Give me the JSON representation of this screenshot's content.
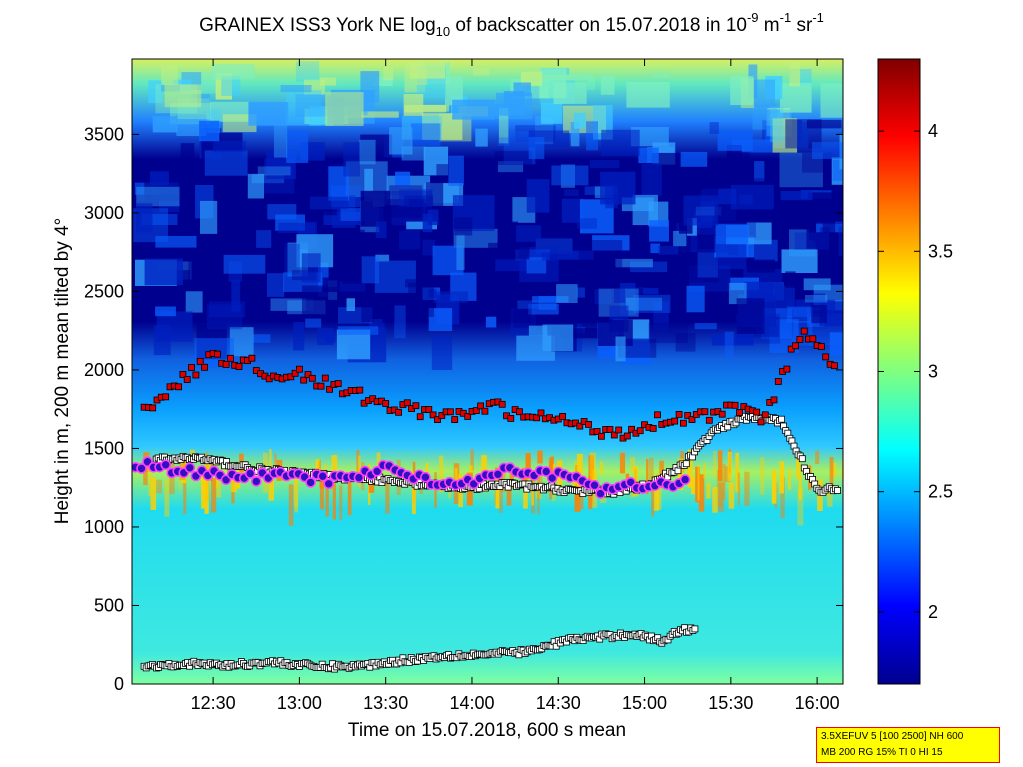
{
  "chart_data": {
    "type": "heatmap",
    "title_parts": {
      "prefix": "GRAINEX ISS3 York NE log",
      "sub": "10",
      "middle": " of backscatter on 15.07.2018 in 10",
      "sup1": "-9",
      "unit1": " m",
      "sup2": "-1",
      "unit2": " sr",
      "sup3": "-1"
    },
    "xlabel": "Time on 15.07.2018, 600 s mean",
    "ylabel": "Height in m, 200 m mean tilted by 4°",
    "x_range_hours": [
      12.03,
      16.15
    ],
    "ylim": [
      0,
      3980
    ],
    "x_ticks": [
      {
        "label": "12:30",
        "value": 12.5
      },
      {
        "label": "13:00",
        "value": 13.0
      },
      {
        "label": "13:30",
        "value": 13.5
      },
      {
        "label": "14:00",
        "value": 14.0
      },
      {
        "label": "14:30",
        "value": 14.5
      },
      {
        "label": "15:00",
        "value": 15.0
      },
      {
        "label": "15:30",
        "value": 15.5
      },
      {
        "label": "16:00",
        "value": 16.0
      }
    ],
    "y_ticks": [
      0,
      500,
      1000,
      1500,
      2000,
      2500,
      3000,
      3500
    ],
    "colorbar": {
      "colormap": "jet",
      "range": [
        1.7,
        4.3
      ],
      "ticks": [
        2,
        2.5,
        3,
        3.5,
        4
      ]
    },
    "series": [
      {
        "marker": "white-square",
        "x": [
          12.17,
          12.4,
          12.6,
          12.8,
          13.0,
          13.2,
          13.4,
          13.6,
          13.8,
          14.0,
          14.2,
          14.4,
          14.6,
          14.8,
          15.0,
          15.2,
          15.4,
          15.6,
          15.8,
          16.0,
          16.12
        ],
        "y": [
          1430,
          1440,
          1400,
          1360,
          1340,
          1320,
          1310,
          1280,
          1260,
          1250,
          1270,
          1250,
          1230,
          1220,
          1260,
          1370,
          1610,
          1700,
          1670,
          1230,
          1250
        ]
      },
      {
        "marker": "white-square",
        "x": [
          12.1,
          12.3,
          12.6,
          12.85,
          13.1,
          13.35,
          13.6,
          13.85,
          14.1,
          14.35,
          14.55,
          14.75,
          14.95,
          15.1,
          15.2,
          15.3
        ],
        "y": [
          110,
          130,
          120,
          140,
          110,
          115,
          150,
          180,
          190,
          210,
          280,
          300,
          320,
          270,
          340,
          350
        ]
      },
      {
        "marker": "red-square",
        "x": [
          12.1,
          12.2,
          12.35,
          12.5,
          12.7,
          12.85,
          13.0,
          13.1,
          13.3,
          13.5,
          13.7,
          13.9,
          14.1,
          14.3,
          14.5,
          14.7,
          14.9,
          15.1,
          15.3,
          15.5,
          15.7,
          15.9,
          16.05,
          16.12
        ],
        "y": [
          1750,
          1840,
          1960,
          2080,
          2050,
          1960,
          1980,
          1930,
          1850,
          1780,
          1740,
          1690,
          1780,
          1700,
          1690,
          1620,
          1600,
          1690,
          1700,
          1750,
          1700,
          2230,
          2100,
          2030
        ]
      },
      {
        "marker": "blue-circle",
        "x": [
          12.05,
          12.3,
          12.45,
          12.6,
          12.75,
          12.9,
          13.2,
          13.35,
          13.55,
          13.75,
          13.95,
          14.15,
          14.35,
          14.55,
          14.75,
          15.05,
          15.15,
          15.25
        ],
        "y": [
          1400,
          1360,
          1340,
          1310,
          1320,
          1320,
          1300,
          1340,
          1380,
          1290,
          1280,
          1360,
          1330,
          1350,
          1230,
          1280,
          1260,
          1290
        ]
      }
    ],
    "info_box": {
      "line1": "3.5XEFUV 5 [100 2500] NH 600",
      "line2": "MB 200 RG 15% TI 0 HI 15"
    }
  }
}
